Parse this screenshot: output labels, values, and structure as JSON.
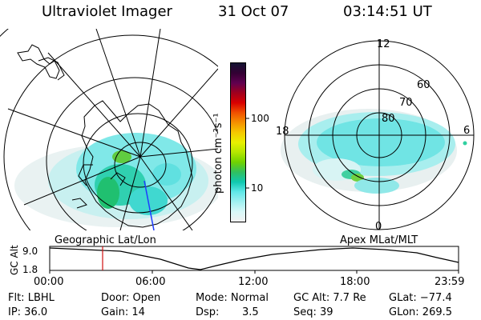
{
  "header": {
    "title": "Ultraviolet Imager",
    "date": "31 Oct 07",
    "time": "03:14:51 UT"
  },
  "colorbar": {
    "unit_label": "photon cm⁻²s⁻¹",
    "ticks": [
      "100",
      "10"
    ],
    "colors": [
      "#141433",
      "#330033",
      "#600050",
      "#a0001e",
      "#d80000",
      "#f05000",
      "#f59000",
      "#f5c800",
      "#e8f000",
      "#b4e600",
      "#70d200",
      "#30c060",
      "#10c8b0",
      "#60e8e8",
      "#a0f0f0",
      "#d8f8f8",
      "#f2f2f2"
    ]
  },
  "polar": {
    "mlt_labels": [
      "12",
      "18",
      "6",
      "0"
    ],
    "lat_labels": [
      "60",
      "70",
      "80"
    ]
  },
  "alt_plot": {
    "left_label": "Geographic Lat/Lon",
    "right_label": "Apex MLat/MLT",
    "axis_label": "GC Alt",
    "y_ticks": [
      "9.0",
      "1.8"
    ],
    "x_ticks": [
      "00:00",
      "06:00",
      "12:00",
      "18:00",
      "23:59"
    ],
    "marker_color": "#d01010"
  },
  "footer": {
    "flt": "Flt: LBHL",
    "ip": "IP: 36.0",
    "door": "Door: Open",
    "gain": "Gain: 14",
    "mode": "Mode: Normal",
    "dsp_label": "Dsp:",
    "dsp_value": "3.5",
    "gc_alt": "GC Alt: 7.7 Re",
    "seq": "Seq: 39",
    "glat": "GLat: −77.4",
    "glon": "GLon: 269.5"
  }
}
